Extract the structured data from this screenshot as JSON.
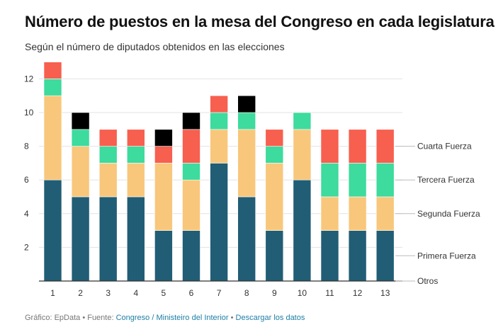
{
  "title": "Número de puestos en la mesa del Congreso en cada legislatura",
  "subtitle": "Según el número de diputados obtenidos en las elecciones",
  "footer": {
    "prefix": "Gráfico: EpData • Fuente: ",
    "source_link": "Congreso / Ministeiro del Interior",
    "separator": " • ",
    "download_link": "Descargar los datos"
  },
  "colors": {
    "Primera Fuerza": "#215d75",
    "Segunda Fuerza": "#f8c77c",
    "Tercera Fuerza": "#3ddb9d",
    "Cuarta Fuerza": "#f75f4f",
    "Otros": "#000000"
  },
  "chart_data": {
    "type": "bar",
    "stacked": true,
    "categories": [
      "1",
      "2",
      "3",
      "4",
      "5",
      "6",
      "7",
      "8",
      "9",
      "10",
      "11",
      "12",
      "13"
    ],
    "ylim": [
      0,
      13
    ],
    "yticks": [
      2,
      4,
      6,
      8,
      10,
      12
    ],
    "grid": true,
    "legend_placement": "right (labels at end of last bar)",
    "series": [
      {
        "name": "Primera Fuerza",
        "values": [
          6,
          5,
          5,
          5,
          3,
          3,
          7,
          5,
          3,
          6,
          3,
          3,
          3
        ]
      },
      {
        "name": "Segunda Fuerza",
        "values": [
          5,
          3,
          2,
          2,
          4,
          3,
          2,
          4,
          4,
          3,
          2,
          2,
          2
        ]
      },
      {
        "name": "Tercera Fuerza",
        "values": [
          1,
          1,
          1,
          1,
          0,
          1,
          1,
          1,
          1,
          1,
          2,
          2,
          2
        ]
      },
      {
        "name": "Cuarta Fuerza",
        "values": [
          1,
          0,
          1,
          1,
          1,
          2,
          1,
          0,
          1,
          0,
          2,
          2,
          2
        ]
      },
      {
        "name": "Otros",
        "values": [
          0,
          1,
          0,
          0,
          1,
          1,
          0,
          1,
          0,
          0,
          0,
          0,
          0
        ]
      }
    ]
  }
}
